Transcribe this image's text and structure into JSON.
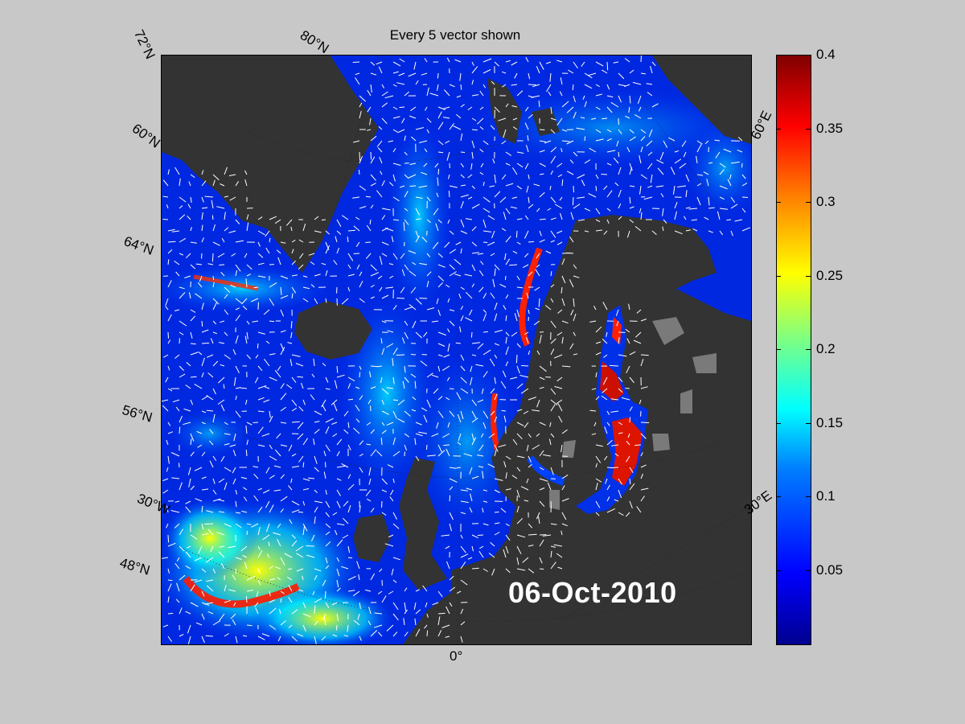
{
  "map": {
    "title": "Every 5 vector shown",
    "date": "06-Oct-2010",
    "graticule_labels": {
      "lat_72": "72°N",
      "lat_80": "80°N",
      "lat_60": "60°N",
      "lat_64": "64°N",
      "lat_56": "56°N",
      "lat_48": "48°N",
      "lon_30w": "30°W",
      "lon_0": "0°",
      "lon_30e": "30°E",
      "lon_60e": "60°E"
    },
    "colors": {
      "land": "#333333",
      "ocean_low": "#0022dd",
      "vector": "#ffffff",
      "background": "#c8c8c8"
    }
  },
  "colorbar": {
    "min": 0,
    "max": 0.4,
    "ticks": [
      "0.4",
      "0.35",
      "0.3",
      "0.25",
      "0.2",
      "0.15",
      "0.1",
      "0.05"
    ],
    "colormap": "jet"
  }
}
